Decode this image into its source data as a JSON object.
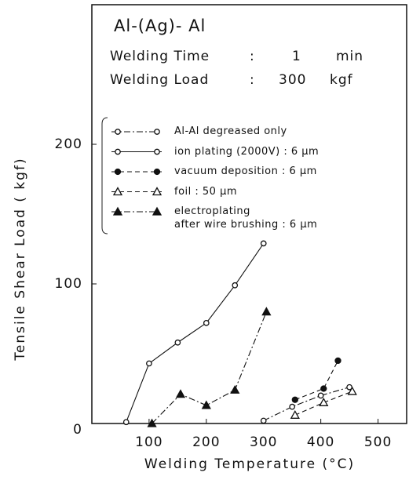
{
  "chart_data": {
    "type": "line",
    "title": "Al-(Ag)- Al",
    "conditions": [
      {
        "label": "Welding Time",
        "sep": ":",
        "value": "1",
        "unit": "min"
      },
      {
        "label": "Welding Load",
        "sep": ":",
        "value": "300",
        "unit": "kgf"
      }
    ],
    "xlabel": "Welding Temperature (°C)",
    "ylabel": "Tensile Shear Load ( kgf)",
    "xlim": [
      0,
      550
    ],
    "ylim": [
      0,
      300
    ],
    "xticks": [
      100,
      200,
      300,
      400,
      500
    ],
    "yticks": [
      0,
      100,
      200
    ],
    "series": [
      {
        "name": "Al-Al degreased only",
        "color": "#111111",
        "marker": "open-circle",
        "line": "dashdot",
        "x": [
          300,
          350,
          400,
          450
        ],
        "values": [
          2,
          12,
          20,
          26
        ]
      },
      {
        "name": "ion plating (2000V) : 6 μm",
        "color": "#111111",
        "marker": "open-circle",
        "line": "solid",
        "x": [
          60,
          100,
          150,
          200,
          250,
          300
        ],
        "values": [
          1,
          43,
          58,
          72,
          99,
          129
        ]
      },
      {
        "name": "vacuum deposition : 6 μm",
        "color": "#111111",
        "marker": "filled-circle",
        "line": "dashed",
        "x": [
          355,
          405,
          430
        ],
        "values": [
          17,
          25,
          45
        ]
      },
      {
        "name": "foil : 50 μm",
        "color": "#111111",
        "marker": "open-triangle",
        "line": "dashed",
        "x": [
          355,
          405,
          455
        ],
        "values": [
          6,
          15,
          23
        ]
      },
      {
        "name": "electroplating\nafter wire brushing : 6 μm",
        "color": "#111111",
        "marker": "filled-triangle",
        "line": "dashdot",
        "x": [
          105,
          155,
          200,
          250,
          305
        ],
        "values": [
          0,
          21,
          13,
          24,
          80
        ]
      }
    ]
  }
}
